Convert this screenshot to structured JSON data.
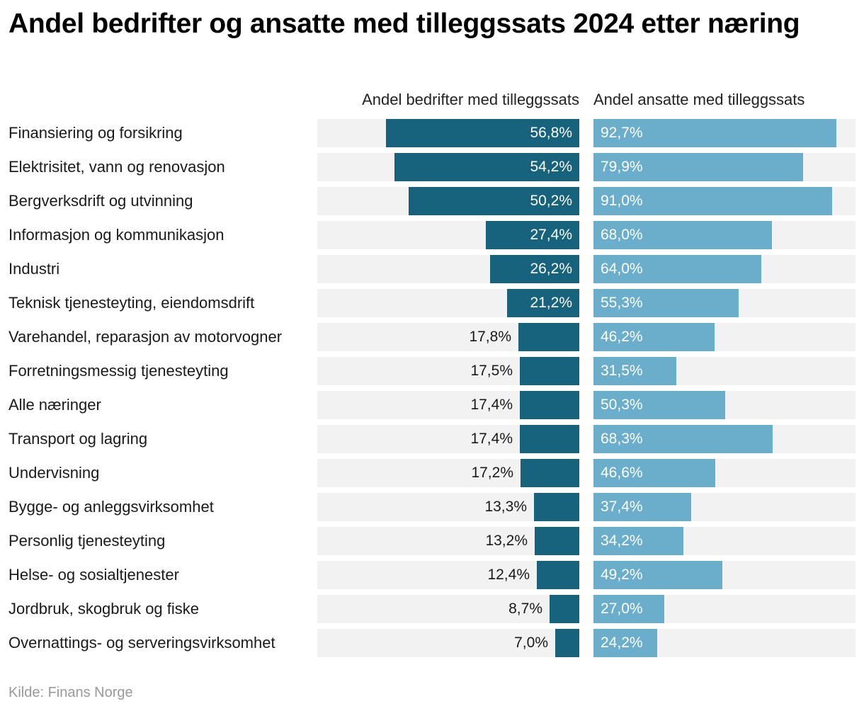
{
  "chart_data": {
    "type": "bar",
    "orientation": "horizontal",
    "title": "Andel bedrifter og ansatte med tilleggssats 2024 etter næring",
    "source": "Kilde: Finans Norge",
    "xlim": [
      0,
      100
    ],
    "categories": [
      "Finansiering og forsikring",
      "Elektrisitet, vann og renovasjon",
      "Bergverksdrift og utvinning",
      "Informasjon og kommunikasjon",
      "Industri",
      "Teknisk tjenesteyting, eiendomsdrift",
      "Varehandel, reparasjon av motorvogner",
      "Forretningsmessig tjenesteyting",
      "Alle næringer",
      "Transport og lagring",
      "Undervisning",
      "Bygge- og anleggsvirksomhet",
      "Personlig tjenesteyting",
      "Helse- og sosialtjenester",
      "Jordbruk, skogbruk og fiske",
      "Overnattings- og serveringsvirksomhet"
    ],
    "series": [
      {
        "name": "Andel bedrifter med tilleggssats",
        "color": "#17627c",
        "values": [
          56.8,
          54.2,
          50.2,
          27.4,
          26.2,
          21.2,
          17.8,
          17.5,
          17.4,
          17.4,
          17.2,
          13.3,
          13.2,
          12.4,
          8.7,
          7.0
        ],
        "labels": [
          "56,8%",
          "54,2%",
          "50,2%",
          "27,4%",
          "26,2%",
          "21,2%",
          "17,8%",
          "17,5%",
          "17,4%",
          "17,4%",
          "17,2%",
          "13,3%",
          "13,2%",
          "12,4%",
          "8,7%",
          "7,0%"
        ]
      },
      {
        "name": "Andel ansatte med tilleggssats",
        "color": "#6baecb",
        "values": [
          92.7,
          79.9,
          91.0,
          68.0,
          64.0,
          55.3,
          46.2,
          31.5,
          50.3,
          68.3,
          46.6,
          37.4,
          34.2,
          49.2,
          27.0,
          24.2
        ],
        "labels": [
          "92,7%",
          "79,9%",
          "91,0%",
          "68,0%",
          "64,0%",
          "55,3%",
          "46,2%",
          "31,5%",
          "50,3%",
          "68,3%",
          "46,6%",
          "37,4%",
          "34,2%",
          "49,2%",
          "27,0%",
          "24,2%"
        ]
      }
    ]
  }
}
